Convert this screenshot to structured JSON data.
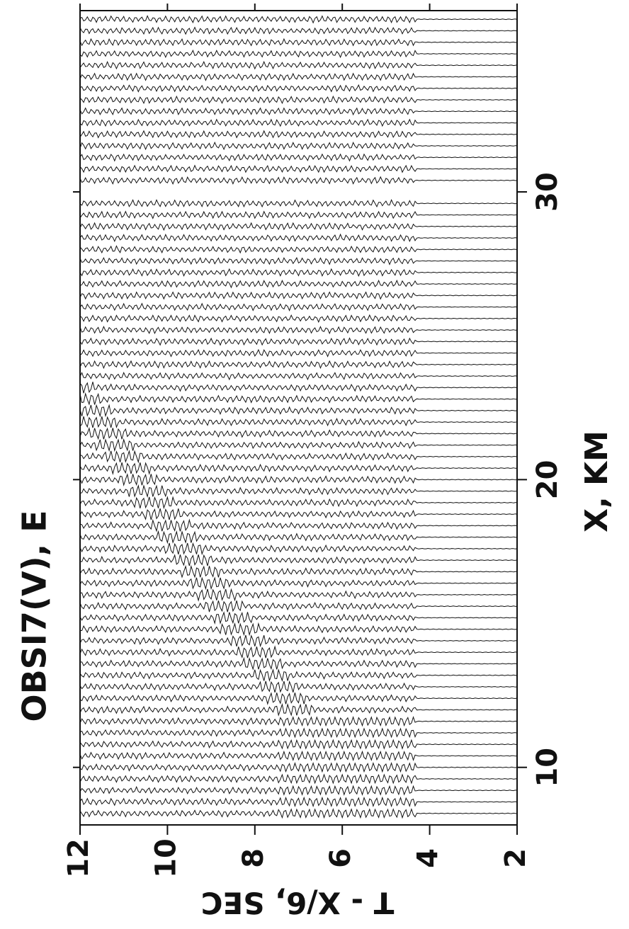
{
  "chart_data": {
    "type": "record-section",
    "title": "OBSI7(V), E",
    "xlabel": "X, KM",
    "ylabel": "T - X/6, SEC",
    "xlim": [
      8,
      36.3
    ],
    "xticks": [
      10,
      20,
      30
    ],
    "ylim": [
      12,
      2
    ],
    "yticks": [
      12,
      10,
      8,
      6,
      4,
      2
    ],
    "color": "#111111",
    "traces": [
      8.4,
      8.8,
      9.2,
      9.6,
      10.0,
      10.4,
      10.8,
      11.2,
      11.6,
      12.0,
      12.4,
      12.8,
      13.2,
      13.6,
      14.0,
      14.4,
      14.8,
      15.2,
      15.6,
      16.0,
      16.4,
      16.8,
      17.2,
      17.6,
      18.0,
      18.4,
      18.8,
      19.2,
      19.6,
      20.0,
      20.4,
      20.8,
      21.2,
      21.6,
      22.0,
      22.4,
      22.8,
      23.2,
      23.6,
      24.0,
      24.4,
      24.8,
      25.2,
      25.6,
      26.0,
      26.4,
      26.8,
      27.2,
      27.6,
      28.0,
      28.4,
      28.8,
      29.2,
      29.6,
      30.4,
      30.8,
      31.2,
      31.6,
      32.0,
      32.4,
      32.8,
      33.2,
      33.6,
      34.0,
      34.4,
      34.8,
      35.2,
      35.6,
      36.0
    ]
  }
}
